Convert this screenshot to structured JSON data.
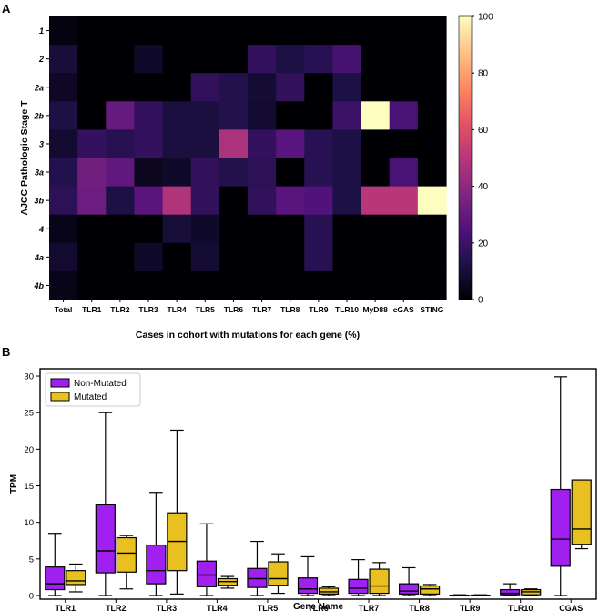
{
  "panels": {
    "a": {
      "letter": "A"
    },
    "b": {
      "letter": "B"
    }
  },
  "colorscale": [
    "#000004",
    "#1d1147",
    "#51127c",
    "#822681",
    "#b73779",
    "#e75263",
    "#fc8961",
    "#fec287",
    "#fcfdbf"
  ],
  "box_colors": {
    "non_mutated": "#a020f0",
    "mutated": "#e8c020"
  },
  "chart_data": [
    {
      "type": "heatmap",
      "title": "",
      "xlabel": "Cases in cohort with mutations for each gene (%)",
      "ylabel": "AJCC Pathologic Stage T",
      "x_categories": [
        "Total",
        "TLR1",
        "TLR2",
        "TLR3",
        "TLR4",
        "TLR5",
        "TLR6",
        "TLR7",
        "TLR8",
        "TLR9",
        "TLR10",
        "MyD88",
        "cGAS",
        "STING"
      ],
      "y_categories": [
        "1",
        "2",
        "2a",
        "2b",
        "3",
        "3a",
        "3b",
        "4",
        "4a",
        "4b"
      ],
      "values": [
        [
          2,
          0,
          0,
          0,
          0,
          0,
          0,
          0,
          0,
          0,
          0,
          0,
          0,
          0
        ],
        [
          10,
          0,
          0,
          7,
          0,
          0,
          0,
          18,
          12,
          15,
          22,
          0,
          0,
          0
        ],
        [
          6,
          0,
          0,
          0,
          0,
          17,
          14,
          9,
          17,
          0,
          12,
          0,
          0,
          0
        ],
        [
          12,
          0,
          30,
          18,
          11,
          11,
          14,
          8,
          0,
          0,
          20,
          100,
          23,
          0
        ],
        [
          8,
          18,
          15,
          18,
          11,
          11,
          47,
          18,
          27,
          15,
          12,
          0,
          0,
          0
        ],
        [
          14,
          33,
          29,
          5,
          7,
          17,
          14,
          16,
          0,
          15,
          12,
          0,
          23,
          0
        ],
        [
          16,
          32,
          12,
          27,
          48,
          17,
          0,
          17,
          27,
          25,
          12,
          50,
          50,
          100
        ],
        [
          4,
          0,
          0,
          0,
          10,
          7,
          0,
          0,
          0,
          15,
          0,
          0,
          0,
          0
        ],
        [
          8,
          0,
          0,
          7,
          0,
          9,
          0,
          0,
          0,
          15,
          0,
          0,
          0,
          0
        ],
        [
          4,
          0,
          0,
          0,
          0,
          0,
          0,
          0,
          0,
          0,
          0,
          0,
          0,
          0
        ]
      ],
      "colorbar": {
        "range": [
          0,
          100
        ],
        "ticks": [
          "0",
          "20",
          "40",
          "60",
          "80",
          "100"
        ]
      }
    },
    {
      "type": "box",
      "title": "",
      "xlabel": "Gene Name",
      "ylabel": "TPM",
      "ylim": [
        -0.5,
        31
      ],
      "yticks": [
        "0",
        "5",
        "10",
        "15",
        "20",
        "25",
        "30"
      ],
      "categories": [
        "TLR1",
        "TLR2",
        "TLR3",
        "TLR4",
        "TLR5",
        "TLR6",
        "TLR7",
        "TLR8",
        "TLR9",
        "TLR10",
        "CGAS"
      ],
      "legend": {
        "position": "top-left",
        "entries": [
          "Non-Mutated",
          "Mutated"
        ]
      },
      "series": [
        {
          "name": "Non-Mutated",
          "boxes": [
            {
              "min": 0,
              "q1": 0.8,
              "median": 1.6,
              "q3": 3.9,
              "max": 8.5
            },
            {
              "min": 0,
              "q1": 3.1,
              "median": 6.1,
              "q3": 12.4,
              "max": 25
            },
            {
              "min": 0,
              "q1": 1.6,
              "median": 3.4,
              "q3": 6.9,
              "max": 14.1
            },
            {
              "min": 0,
              "q1": 1.2,
              "median": 2.8,
              "q3": 4.7,
              "max": 9.8
            },
            {
              "min": 0,
              "q1": 1.1,
              "median": 2.3,
              "q3": 3.7,
              "max": 7.4
            },
            {
              "min": 0,
              "q1": 0.3,
              "median": 0.9,
              "q3": 2.4,
              "max": 5.3
            },
            {
              "min": 0,
              "q1": 0.3,
              "median": 1.0,
              "q3": 2.2,
              "max": 4.9
            },
            {
              "min": 0,
              "q1": 0.2,
              "median": 0.6,
              "q3": 1.6,
              "max": 3.8
            },
            {
              "min": 0,
              "q1": 0,
              "median": 0,
              "q3": 0.05,
              "max": 0.1
            },
            {
              "min": 0,
              "q1": 0.1,
              "median": 0.3,
              "q3": 0.8,
              "max": 1.6
            },
            {
              "min": 0,
              "q1": 4.0,
              "median": 7.7,
              "q3": 14.5,
              "max": 29.9
            }
          ]
        },
        {
          "name": "Mutated",
          "boxes": [
            {
              "min": 0.5,
              "q1": 1.5,
              "median": 2.0,
              "q3": 3.4,
              "max": 4.3
            },
            {
              "min": 0.9,
              "q1": 3.2,
              "median": 5.8,
              "q3": 7.9,
              "max": 8.2
            },
            {
              "min": 0.2,
              "q1": 3.4,
              "median": 7.4,
              "q3": 11.3,
              "max": 22.6
            },
            {
              "min": 1.0,
              "q1": 1.4,
              "median": 1.9,
              "q3": 2.3,
              "max": 2.6
            },
            {
              "min": 0.3,
              "q1": 1.4,
              "median": 2.3,
              "q3": 4.6,
              "max": 5.7
            },
            {
              "min": 0,
              "q1": 0.2,
              "median": 0.5,
              "q3": 1.0,
              "max": 1.2
            },
            {
              "min": 0,
              "q1": 0.3,
              "median": 1.3,
              "q3": 3.6,
              "max": 4.5
            },
            {
              "min": 0,
              "q1": 0.2,
              "median": 0.9,
              "q3": 1.3,
              "max": 1.5
            },
            {
              "min": 0,
              "q1": 0,
              "median": 0,
              "q3": 0.05,
              "max": 0.1
            },
            {
              "min": 0,
              "q1": 0.1,
              "median": 0.5,
              "q3": 0.8,
              "max": 0.9
            },
            {
              "min": 6.4,
              "q1": 7.0,
              "median": 9.1,
              "q3": 15.8,
              "max": 15.8
            }
          ]
        }
      ]
    }
  ]
}
